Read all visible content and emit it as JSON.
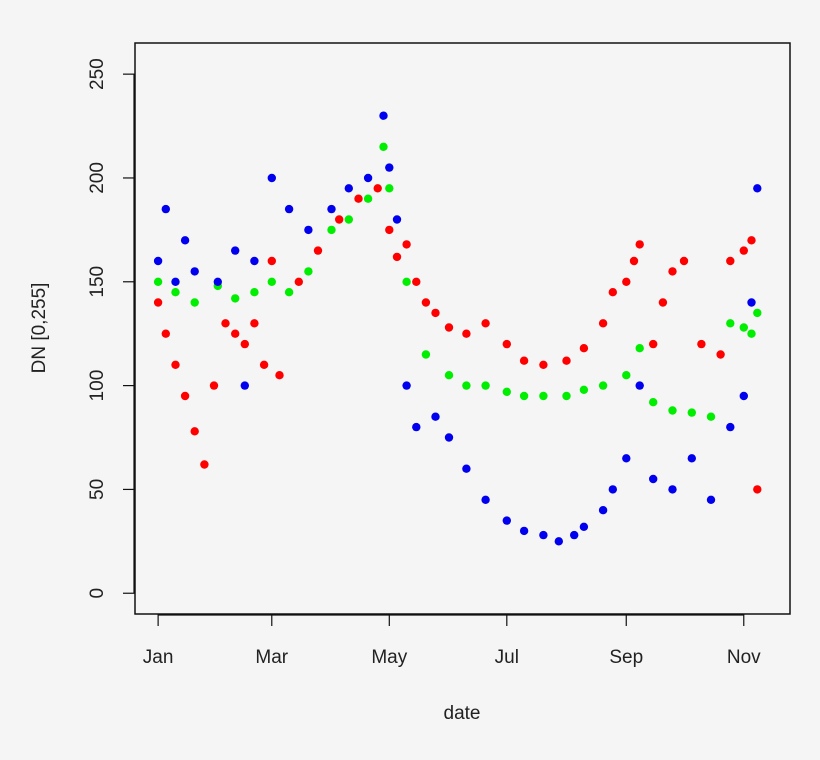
{
  "chart_data": {
    "type": "scatter",
    "title": "",
    "xlabel": "date",
    "ylabel": "DN [0,255]",
    "x_ticks": [
      "Jan",
      "Mar",
      "May",
      "Jul",
      "Sep",
      "Nov"
    ],
    "x_tick_dates": [
      "2015-01-01",
      "2015-03-01",
      "2015-05-01",
      "2015-07-01",
      "2015-09-01",
      "2015-11-01"
    ],
    "xlim": [
      "2014-12-20",
      "2015-11-25"
    ],
    "y_ticks": [
      0,
      50,
      100,
      150,
      200,
      250
    ],
    "ylim": [
      -10,
      265
    ],
    "grid": false,
    "legend": "none",
    "series": [
      {
        "color": "#ff0000",
        "points": [
          [
            "2015-01-01",
            140
          ],
          [
            "2015-01-05",
            125
          ],
          [
            "2015-01-10",
            110
          ],
          [
            "2015-01-15",
            95
          ],
          [
            "2015-01-20",
            78
          ],
          [
            "2015-01-25",
            62
          ],
          [
            "2015-01-30",
            100
          ],
          [
            "2015-02-05",
            130
          ],
          [
            "2015-02-10",
            125
          ],
          [
            "2015-02-15",
            120
          ],
          [
            "2015-02-20",
            130
          ],
          [
            "2015-02-25",
            110
          ],
          [
            "2015-03-01",
            160
          ],
          [
            "2015-03-05",
            105
          ],
          [
            "2015-03-15",
            150
          ],
          [
            "2015-03-25",
            165
          ],
          [
            "2015-04-05",
            180
          ],
          [
            "2015-04-15",
            190
          ],
          [
            "2015-04-25",
            195
          ],
          [
            "2015-05-01",
            175
          ],
          [
            "2015-05-05",
            162
          ],
          [
            "2015-05-10",
            168
          ],
          [
            "2015-05-15",
            150
          ],
          [
            "2015-05-20",
            140
          ],
          [
            "2015-05-25",
            135
          ],
          [
            "2015-06-01",
            128
          ],
          [
            "2015-06-10",
            125
          ],
          [
            "2015-06-20",
            130
          ],
          [
            "2015-07-01",
            120
          ],
          [
            "2015-07-10",
            112
          ],
          [
            "2015-07-20",
            110
          ],
          [
            "2015-08-01",
            112
          ],
          [
            "2015-08-10",
            118
          ],
          [
            "2015-08-20",
            130
          ],
          [
            "2015-08-25",
            145
          ],
          [
            "2015-09-01",
            150
          ],
          [
            "2015-09-05",
            160
          ],
          [
            "2015-09-08",
            168
          ],
          [
            "2015-09-15",
            120
          ],
          [
            "2015-09-20",
            140
          ],
          [
            "2015-09-25",
            155
          ],
          [
            "2015-10-01",
            160
          ],
          [
            "2015-10-10",
            120
          ],
          [
            "2015-10-20",
            115
          ],
          [
            "2015-10-25",
            160
          ],
          [
            "2015-11-01",
            165
          ],
          [
            "2015-11-05",
            170
          ],
          [
            "2015-11-08",
            50
          ]
        ]
      },
      {
        "color": "#00ee00",
        "points": [
          [
            "2015-01-01",
            150
          ],
          [
            "2015-01-10",
            145
          ],
          [
            "2015-01-20",
            140
          ],
          [
            "2015-02-01",
            148
          ],
          [
            "2015-02-10",
            142
          ],
          [
            "2015-02-20",
            145
          ],
          [
            "2015-03-01",
            150
          ],
          [
            "2015-03-10",
            145
          ],
          [
            "2015-03-20",
            155
          ],
          [
            "2015-04-01",
            175
          ],
          [
            "2015-04-10",
            180
          ],
          [
            "2015-04-20",
            190
          ],
          [
            "2015-04-28",
            215
          ],
          [
            "2015-05-01",
            195
          ],
          [
            "2015-05-10",
            150
          ],
          [
            "2015-05-20",
            115
          ],
          [
            "2015-06-01",
            105
          ],
          [
            "2015-06-10",
            100
          ],
          [
            "2015-06-20",
            100
          ],
          [
            "2015-07-01",
            97
          ],
          [
            "2015-07-10",
            95
          ],
          [
            "2015-07-20",
            95
          ],
          [
            "2015-08-01",
            95
          ],
          [
            "2015-08-10",
            98
          ],
          [
            "2015-08-20",
            100
          ],
          [
            "2015-09-01",
            105
          ],
          [
            "2015-09-08",
            118
          ],
          [
            "2015-09-15",
            92
          ],
          [
            "2015-09-25",
            88
          ],
          [
            "2015-10-05",
            87
          ],
          [
            "2015-10-15",
            85
          ],
          [
            "2015-10-25",
            130
          ],
          [
            "2015-11-01",
            128
          ],
          [
            "2015-11-05",
            125
          ],
          [
            "2015-11-08",
            135
          ]
        ]
      },
      {
        "color": "#0000ee",
        "points": [
          [
            "2015-01-01",
            160
          ],
          [
            "2015-01-05",
            185
          ],
          [
            "2015-01-10",
            150
          ],
          [
            "2015-01-15",
            170
          ],
          [
            "2015-01-20",
            155
          ],
          [
            "2015-02-01",
            150
          ],
          [
            "2015-02-10",
            165
          ],
          [
            "2015-02-15",
            100
          ],
          [
            "2015-02-20",
            160
          ],
          [
            "2015-03-01",
            200
          ],
          [
            "2015-03-10",
            185
          ],
          [
            "2015-03-20",
            175
          ],
          [
            "2015-04-01",
            185
          ],
          [
            "2015-04-10",
            195
          ],
          [
            "2015-04-20",
            200
          ],
          [
            "2015-04-28",
            230
          ],
          [
            "2015-05-01",
            205
          ],
          [
            "2015-05-05",
            180
          ],
          [
            "2015-05-10",
            100
          ],
          [
            "2015-05-15",
            80
          ],
          [
            "2015-05-25",
            85
          ],
          [
            "2015-06-01",
            75
          ],
          [
            "2015-06-10",
            60
          ],
          [
            "2015-06-20",
            45
          ],
          [
            "2015-07-01",
            35
          ],
          [
            "2015-07-10",
            30
          ],
          [
            "2015-07-20",
            28
          ],
          [
            "2015-07-28",
            25
          ],
          [
            "2015-08-05",
            28
          ],
          [
            "2015-08-10",
            32
          ],
          [
            "2015-08-20",
            40
          ],
          [
            "2015-08-25",
            50
          ],
          [
            "2015-09-01",
            65
          ],
          [
            "2015-09-08",
            100
          ],
          [
            "2015-09-15",
            55
          ],
          [
            "2015-09-25",
            50
          ],
          [
            "2015-10-05",
            65
          ],
          [
            "2015-10-15",
            45
          ],
          [
            "2015-10-25",
            80
          ],
          [
            "2015-11-01",
            95
          ],
          [
            "2015-11-05",
            140
          ],
          [
            "2015-11-08",
            195
          ]
        ]
      }
    ]
  }
}
